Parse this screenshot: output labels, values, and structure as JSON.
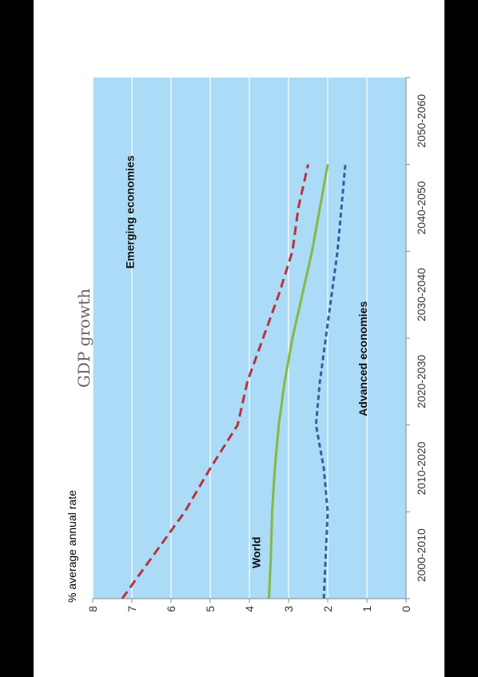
{
  "chart_data": {
    "type": "line",
    "title": "GDP growth",
    "ylabel": "% average annual rate",
    "xlabel": "",
    "ylim": [
      0,
      8
    ],
    "yticks": [
      "0",
      "1",
      "2",
      "3",
      "4",
      "5",
      "6",
      "7",
      "8"
    ],
    "categories": [
      "2000-2010",
      "2010-2020",
      "2020-2030",
      "2030-2040",
      "2040-2050",
      "2050-2060"
    ],
    "x": [
      0,
      0.5,
      1,
      1.5,
      2,
      2.5,
      3,
      3.5,
      4,
      4.5,
      5
    ],
    "series": [
      {
        "name": "Emerging economies",
        "style": "dashed",
        "color": "#b5343f",
        "values": [
          7.25,
          6.45,
          5.65,
          5.0,
          4.3,
          4.05,
          3.65,
          3.25,
          2.9,
          2.75,
          2.5
        ]
      },
      {
        "name": "World",
        "style": "solid",
        "color": "#86b843",
        "values": [
          3.5,
          3.45,
          3.42,
          3.35,
          3.25,
          3.1,
          2.9,
          2.65,
          2.4,
          2.2,
          2.0
        ]
      },
      {
        "name": "Advanced economies",
        "style": "dashed",
        "color": "#355f9e",
        "values": [
          2.1,
          2.05,
          2.0,
          2.1,
          2.3,
          2.2,
          2.05,
          1.9,
          1.75,
          1.65,
          1.55
        ]
      }
    ],
    "grid": true,
    "plot_background": "#abdbf6",
    "gridline_color": "#ffffff",
    "orientation": "rotated-90"
  }
}
